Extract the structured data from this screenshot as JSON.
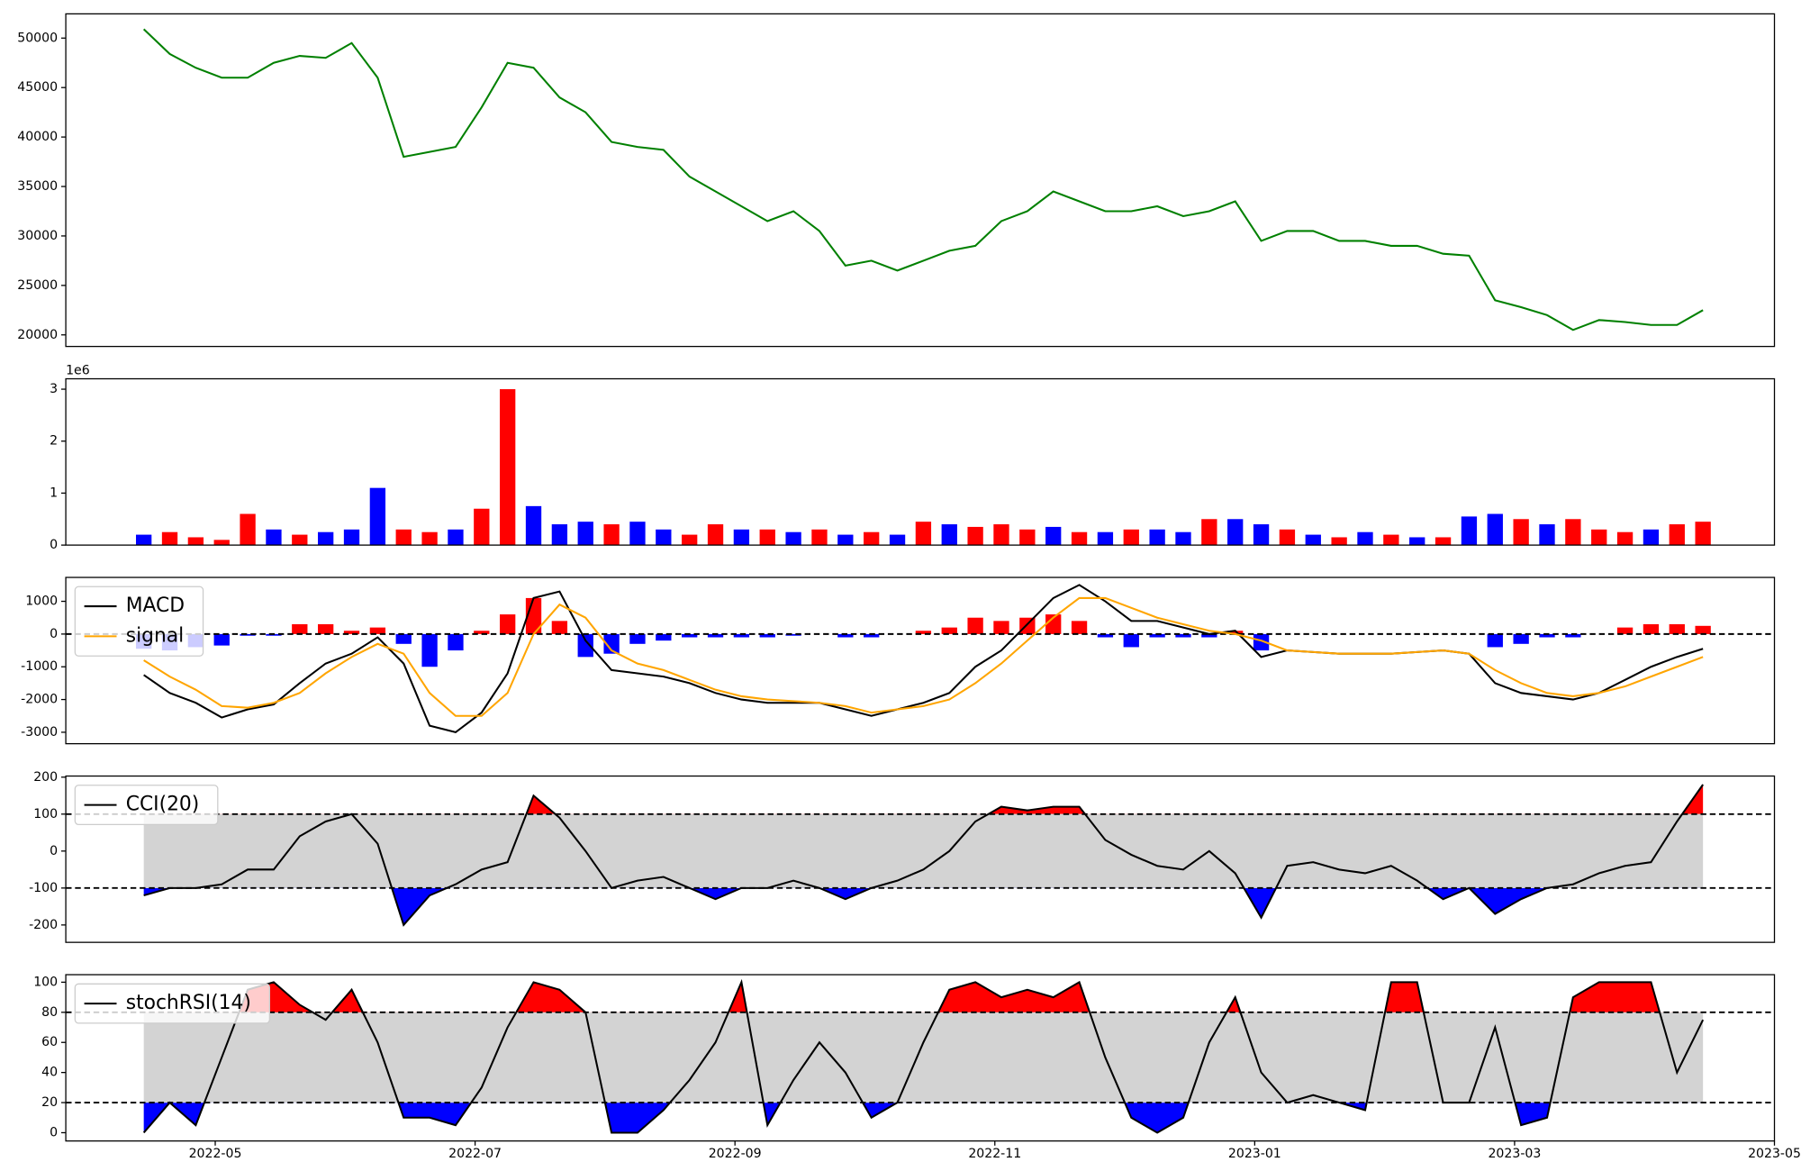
{
  "chart_data": [
    {
      "type": "line",
      "ylim": [
        18830,
        52450
      ],
      "yticks": [
        20000,
        25000,
        30000,
        35000,
        40000,
        45000,
        50000
      ],
      "series": [
        {
          "color": "#008000",
          "values": [
            50900,
            48400,
            47000,
            46000,
            46000,
            47500,
            48200,
            48000,
            49500,
            46000,
            38000,
            38500,
            39000,
            43000,
            47500,
            47000,
            44000,
            42500,
            39500,
            39000,
            38700,
            36000,
            34500,
            33000,
            31500,
            32500,
            30500,
            27000,
            27500,
            26500,
            27500,
            28500,
            29000,
            31500,
            32500,
            34500,
            33500,
            32500,
            32500,
            33000,
            32000,
            32500,
            33500,
            29500,
            30500,
            30500,
            29500,
            29500,
            29000,
            29000,
            28200,
            28000,
            23500,
            22800,
            22000,
            20500,
            21500,
            21300,
            21000,
            21000,
            22500
          ]
        }
      ]
    },
    {
      "type": "bar",
      "ylim": [
        0,
        3.2
      ],
      "yticks": [
        0,
        1,
        2,
        3
      ],
      "offset_label": "1e6",
      "values": [
        0.2,
        0.25,
        0.15,
        0.1,
        0.6,
        0.3,
        0.2,
        0.25,
        0.3,
        1.1,
        0.3,
        0.25,
        0.3,
        0.7,
        3.0,
        0.75,
        0.4,
        0.45,
        0.4,
        0.45,
        0.3,
        0.2,
        0.4,
        0.3,
        0.3,
        0.25,
        0.3,
        0.2,
        0.25,
        0.2,
        0.45,
        0.4,
        0.35,
        0.4,
        0.3,
        0.35,
        0.25,
        0.25,
        0.3,
        0.3,
        0.25,
        0.5,
        0.5,
        0.4,
        0.3,
        0.2,
        0.15,
        0.25,
        0.2,
        0.15,
        0.15,
        0.55,
        0.6,
        0.5,
        0.4,
        0.5,
        0.3,
        0.25,
        0.3,
        0.4,
        0.45
      ],
      "colors": [
        "blue",
        "red",
        "red",
        "red",
        "red",
        "blue",
        "red",
        "blue",
        "blue",
        "blue",
        "red",
        "red",
        "blue",
        "red",
        "red",
        "blue",
        "blue",
        "blue",
        "red",
        "blue",
        "blue",
        "red",
        "red",
        "blue",
        "red",
        "blue",
        "red",
        "blue",
        "red",
        "blue",
        "red",
        "blue",
        "red",
        "red",
        "red",
        "blue",
        "red",
        "blue",
        "red",
        "blue",
        "blue",
        "red",
        "blue",
        "blue",
        "red",
        "blue",
        "red",
        "blue",
        "red",
        "blue",
        "red",
        "blue",
        "blue",
        "red",
        "blue",
        "red",
        "red",
        "red",
        "blue",
        "red",
        "red"
      ]
    },
    {
      "type": "line",
      "ylim": [
        -3350,
        1730
      ],
      "yticks": [
        -3000,
        -2000,
        -1000,
        0,
        1000
      ],
      "hlines": [
        0
      ],
      "legend": "upper left",
      "histogram": {
        "pos_color": "red",
        "neg_color": "blue",
        "values": [
          -450,
          -500,
          -400,
          -350,
          -50,
          -50,
          300,
          300,
          100,
          200,
          -300,
          -1000,
          -500,
          100,
          600,
          1100,
          400,
          -700,
          -600,
          -300,
          -200,
          -100,
          -100,
          -100,
          -100,
          -50,
          0,
          -100,
          -100,
          0,
          100,
          200,
          500,
          400,
          500,
          600,
          400,
          -100,
          -400,
          -100,
          -100,
          -100,
          100,
          -500,
          0,
          0,
          0,
          0,
          0,
          0,
          0,
          0,
          -400,
          -300,
          -100,
          -100,
          0,
          200,
          300,
          300,
          250
        ]
      },
      "series": [
        {
          "name": "MACD",
          "color": "#000000",
          "values": [
            -1250,
            -1800,
            -2100,
            -2550,
            -2300,
            -2150,
            -1500,
            -900,
            -600,
            -100,
            -900,
            -2800,
            -3000,
            -2400,
            -1200,
            1100,
            1300,
            -200,
            -1100,
            -1200,
            -1300,
            -1500,
            -1800,
            -2000,
            -2100,
            -2100,
            -2100,
            -2300,
            -2500,
            -2300,
            -2100,
            -1800,
            -1000,
            -500,
            300,
            1100,
            1500,
            1000,
            400,
            400,
            200,
            0,
            100,
            -700,
            -500,
            -550,
            -600,
            -600,
            -600,
            -550,
            -500,
            -600,
            -1500,
            -1800,
            -1900,
            -2000,
            -1800,
            -1400,
            -1000,
            -700,
            -450
          ]
        },
        {
          "name": "signal",
          "color": "orange",
          "values": [
            -800,
            -1300,
            -1700,
            -2200,
            -2250,
            -2100,
            -1800,
            -1200,
            -700,
            -300,
            -600,
            -1800,
            -2500,
            -2500,
            -1800,
            0,
            900,
            500,
            -500,
            -900,
            -1100,
            -1400,
            -1700,
            -1900,
            -2000,
            -2050,
            -2100,
            -2200,
            -2400,
            -2300,
            -2200,
            -2000,
            -1500,
            -900,
            -200,
            500,
            1100,
            1100,
            800,
            500,
            300,
            100,
            0,
            -200,
            -500,
            -550,
            -600,
            -600,
            -600,
            -550,
            -500,
            -600,
            -1100,
            -1500,
            -1800,
            -1900,
            -1800,
            -1600,
            -1300,
            -1000,
            -700
          ]
        }
      ]
    },
    {
      "type": "line",
      "ylim": [
        -247,
        203
      ],
      "yticks": [
        -200,
        -100,
        0,
        100,
        200
      ],
      "legend": "upper left",
      "band": {
        "upper": 100,
        "lower": -100,
        "upper_color": "red",
        "lower_color": "blue",
        "fill": "#d3d3d3"
      },
      "series": [
        {
          "name": "CCI(20)",
          "color": "#000000",
          "values": [
            -120,
            -100,
            -100,
            -90,
            -50,
            -50,
            40,
            80,
            100,
            20,
            -200,
            -120,
            -90,
            -50,
            -30,
            150,
            90,
            0,
            -100,
            -80,
            -70,
            -100,
            -130,
            -100,
            -100,
            -80,
            -100,
            -130,
            -100,
            -80,
            -50,
            0,
            80,
            120,
            110,
            120,
            120,
            30,
            -10,
            -40,
            -50,
            0,
            -60,
            -180,
            -40,
            -30,
            -50,
            -60,
            -40,
            -80,
            -130,
            -100,
            -170,
            -130,
            -100,
            -90,
            -60,
            -40,
            -30,
            80,
            180
          ]
        }
      ]
    },
    {
      "type": "line",
      "ylim": [
        -5.5,
        105
      ],
      "yticks": [
        0,
        20,
        40,
        60,
        80,
        100
      ],
      "legend": "upper left",
      "band": {
        "upper": 80,
        "lower": 20,
        "upper_color": "red",
        "lower_color": "blue",
        "fill": "#d3d3d3"
      },
      "xlim": [
        -1.15,
        12.0
      ],
      "xticks": [
        {
          "value": 0,
          "label": "2022-05"
        },
        {
          "value": 2,
          "label": "2022-07"
        },
        {
          "value": 4,
          "label": "2022-09"
        },
        {
          "value": 6,
          "label": "2022-11"
        },
        {
          "value": 8,
          "label": "2023-01"
        },
        {
          "value": 10,
          "label": "2023-03"
        },
        {
          "value": 12,
          "label": "2023-05"
        }
      ],
      "x": [
        -0.55,
        -0.35,
        -0.15,
        0.05,
        0.25,
        0.45,
        0.65,
        0.85,
        1.05,
        1.25,
        1.45,
        1.65,
        1.85,
        2.05,
        2.25,
        2.45,
        2.65,
        2.85,
        3.05,
        3.25,
        3.45,
        3.65,
        3.85,
        4.05,
        4.25,
        4.45,
        4.65,
        4.85,
        5.05,
        5.25,
        5.45,
        5.65,
        5.85,
        6.05,
        6.25,
        6.45,
        6.65,
        6.85,
        7.05,
        7.25,
        7.45,
        7.65,
        7.85,
        8.05,
        8.25,
        8.45,
        8.65,
        8.85,
        9.05,
        9.25,
        9.45,
        9.65,
        9.85,
        10.05,
        10.25,
        10.45,
        10.65,
        10.85,
        11.05,
        11.25,
        11.45
      ],
      "series": [
        {
          "name": "stochRSI(14)",
          "color": "#000000",
          "values": [
            0,
            20,
            5,
            50,
            95,
            100,
            85,
            75,
            95,
            60,
            10,
            10,
            5,
            30,
            70,
            100,
            95,
            80,
            0,
            0,
            15,
            35,
            60,
            100,
            5,
            35,
            60,
            40,
            10,
            20,
            60,
            95,
            100,
            90,
            95,
            90,
            100,
            50,
            10,
            0,
            10,
            60,
            90,
            40,
            20,
            25,
            20,
            15,
            100,
            100,
            20,
            20,
            70,
            5,
            10,
            90,
            100,
            100,
            100,
            40,
            75
          ]
        }
      ]
    }
  ]
}
